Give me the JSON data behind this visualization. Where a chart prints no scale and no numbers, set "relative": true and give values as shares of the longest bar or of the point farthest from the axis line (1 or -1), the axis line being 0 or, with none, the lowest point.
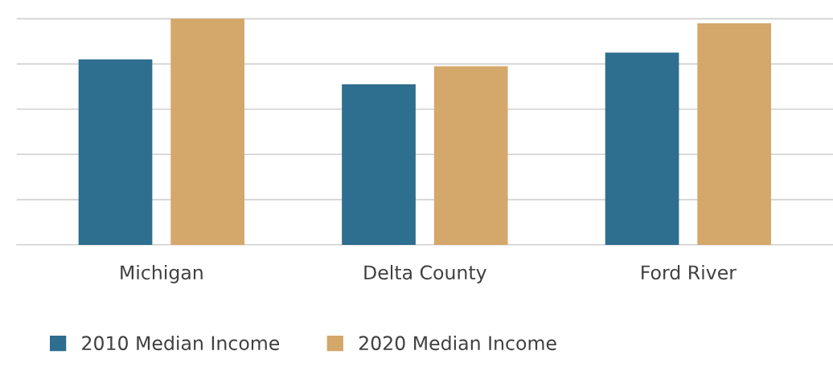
{
  "chart_data": {
    "type": "bar",
    "relative": true,
    "grid": "y",
    "legend": "bottom left",
    "categories": [
      "Michigan",
      "Delta County",
      "Ford River"
    ],
    "series": [
      {
        "name": "2010 Median Income",
        "color": "#2e6e8e",
        "values": [
          0.82,
          0.71,
          0.85
        ]
      },
      {
        "name": "2020 Median Income",
        "color": "#d4a76a",
        "values": [
          1,
          0.79,
          0.98
        ]
      }
    ]
  }
}
